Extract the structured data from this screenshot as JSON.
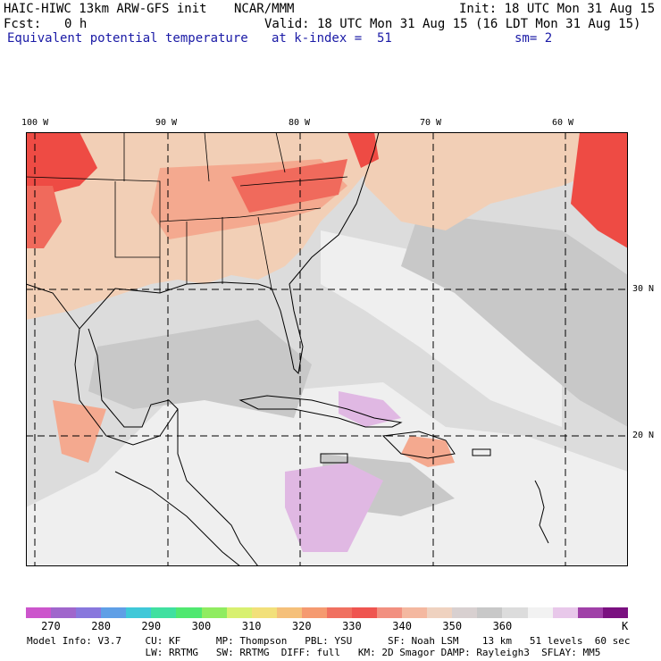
{
  "header": {
    "title_left": "HAIC-HIWC 13km ARW-GFS init",
    "org": "NCAR/MMM",
    "init": "Init: 18 UTC Mon 31 Aug 15",
    "fcst_label": "Fcst:",
    "fcst_value": "0 h",
    "valid": "Valid: 18 UTC Mon 31 Aug 15 (16 LDT Mon 31 Aug 15)",
    "field": "Equivalent potential temperature",
    "level": "at k-index =  51",
    "smooth": "sm= 2"
  },
  "map": {
    "lon_labels": [
      "100 W",
      "90 W",
      "80 W",
      "70 W",
      "60 W"
    ],
    "lat_labels": [
      "30 N",
      "20 N"
    ],
    "colors": {
      "warm_light": "#f2cfb6",
      "warm": "#f4a98f",
      "hot": "#f06a5c",
      "hottest": "#ee4b44",
      "grey": "#c8c8c8",
      "light_grey": "#dcdcdc",
      "near_white": "#efefef",
      "lilac": "#e0b8e3"
    }
  },
  "colorbar": {
    "colors": [
      "#cc55cc",
      "#a066cc",
      "#8877dd",
      "#5f9fe6",
      "#3fc8d8",
      "#40e0a0",
      "#50e870",
      "#90ec60",
      "#d8f070",
      "#f2e07a",
      "#f5c07a",
      "#f59a70",
      "#f07060",
      "#ef5550",
      "#f29080",
      "#f4b8a0",
      "#efd2c0",
      "#d8d0d0",
      "#c8c8c8",
      "#dcdcdc",
      "#f2f2f2",
      "#e8c8ea",
      "#a040a8",
      "#7a1080"
    ],
    "ticks": [
      "270",
      "280",
      "290",
      "300",
      "310",
      "320",
      "330",
      "340",
      "350",
      "360"
    ],
    "unit": "K"
  },
  "footer": {
    "line1": "Model Info: V3.7    CU: KF      MP: Thompson   PBL: YSU      SF: Noah LSM    13 km   51 levels  60 sec",
    "line2": "                    LW: RRTMG   SW: RRTMG  DIFF: full   KM: 2D Smagor DAMP: Rayleigh3  SFLAY: MM5"
  }
}
